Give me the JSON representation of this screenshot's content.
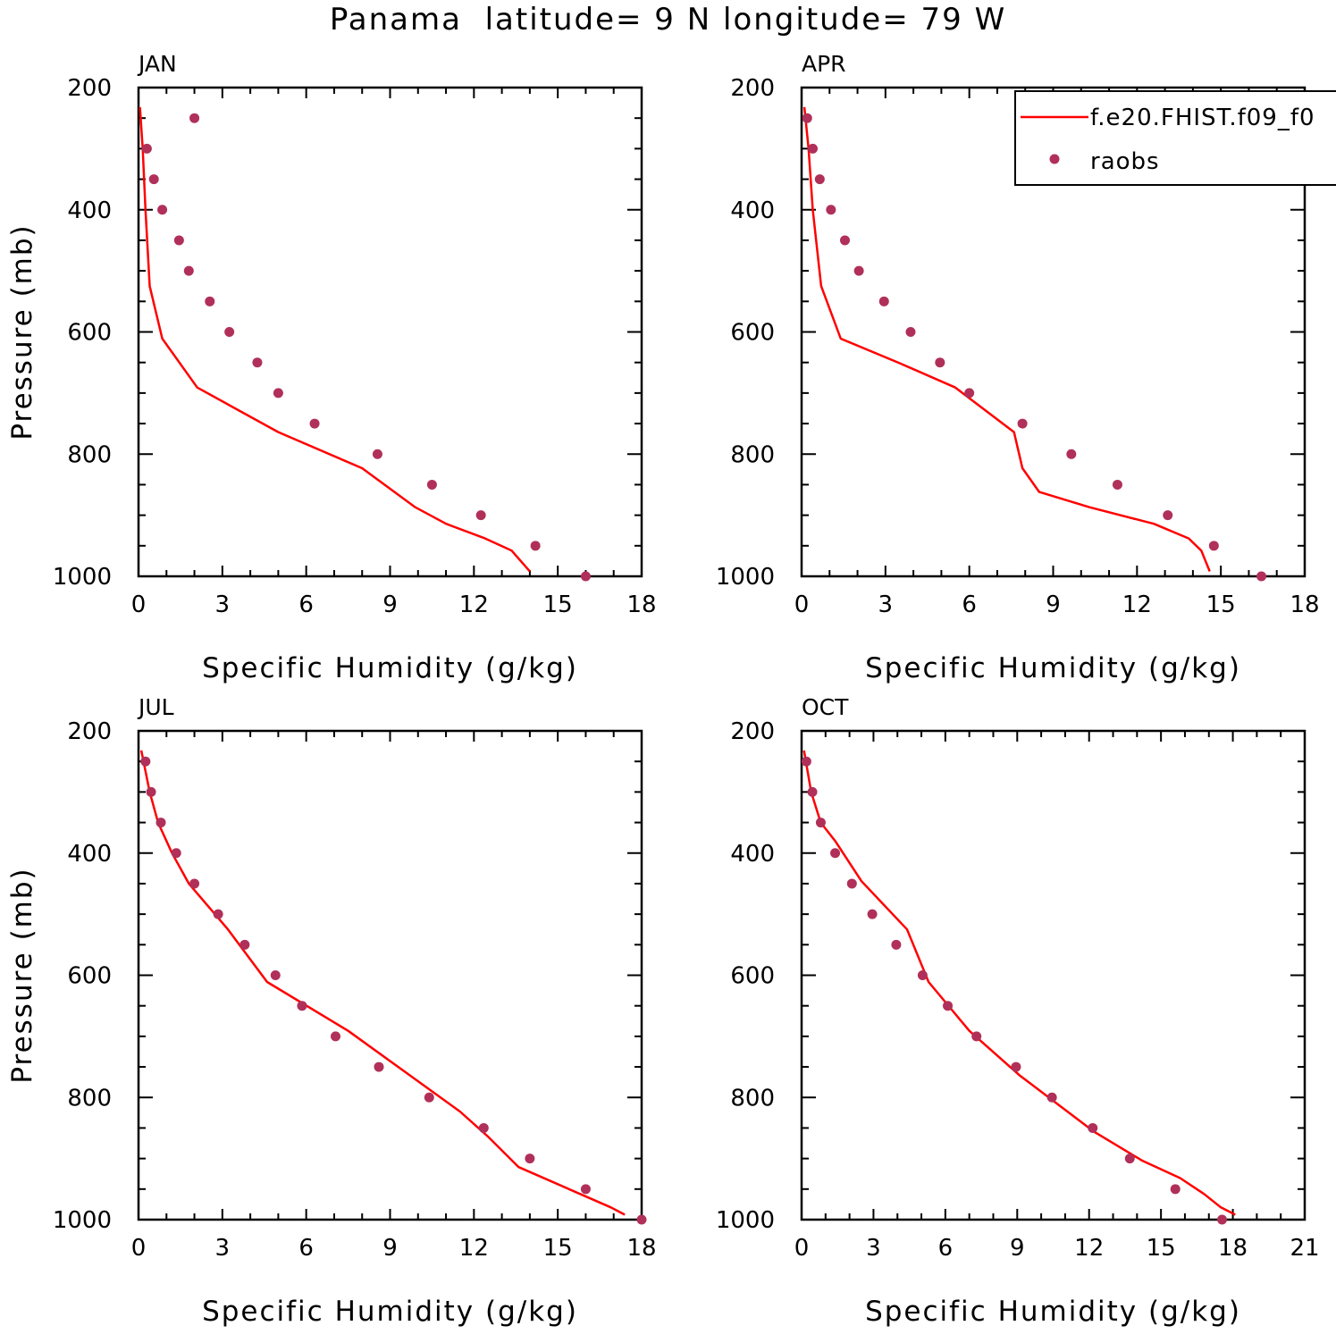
{
  "title": "Panama  latitude= 9 N longitude= 79 W",
  "colors": {
    "model": "#ff0000",
    "obs": "#b0305a",
    "axis": "#000000"
  },
  "legend": {
    "entries": [
      {
        "label": "f.e20.FHIST.f09_f0",
        "kind": "line"
      },
      {
        "label": "raobs",
        "kind": "marker"
      }
    ]
  },
  "chart_data": [
    {
      "type": "line+scatter",
      "panel_label": "JAN",
      "xlabel": "Specific Humidity (g/kg)",
      "ylabel": "Pressure (mb)",
      "xlim": [
        0,
        18
      ],
      "ylim": [
        1000,
        200
      ],
      "xticks": [
        0,
        3,
        6,
        9,
        12,
        15,
        18
      ],
      "yticks": [
        200,
        400,
        600,
        800,
        1000
      ],
      "model": {
        "x": [
          0.05,
          0.15,
          0.25,
          0.4,
          0.85,
          2.1,
          5.0,
          8.0,
          9.9,
          11.0,
          12.4,
          13.35,
          14.0
        ],
        "p": [
          232,
          300,
          400,
          525,
          611,
          691,
          764,
          823,
          887,
          914,
          938,
          958,
          992
        ]
      },
      "raobs": {
        "x": [
          2.0,
          0.3,
          0.55,
          0.85,
          1.45,
          1.8,
          2.55,
          3.25,
          4.25,
          5.0,
          6.3,
          8.55,
          10.5,
          12.25,
          14.2,
          16.0
        ],
        "p": [
          250,
          300,
          350,
          400,
          450,
          500,
          550,
          600,
          650,
          700,
          750,
          800,
          850,
          900,
          950,
          1000
        ]
      }
    },
    {
      "type": "line+scatter",
      "panel_label": "APR",
      "xlabel": "Specific Humidity (g/kg)",
      "ylabel": "",
      "xlim": [
        0,
        18
      ],
      "ylim": [
        1000,
        200
      ],
      "xticks": [
        0,
        3,
        6,
        9,
        12,
        15,
        18
      ],
      "yticks": [
        200,
        400,
        600,
        800,
        1000
      ],
      "model": {
        "x": [
          0.1,
          0.25,
          0.4,
          0.7,
          1.4,
          3.5,
          5.5,
          7.6,
          7.9,
          8.5,
          10.3,
          12.6,
          13.85,
          14.3,
          14.6
        ],
        "p": [
          232,
          300,
          400,
          525,
          611,
          651,
          691,
          764,
          823,
          862,
          887,
          914,
          938,
          958,
          992
        ]
      },
      "raobs": {
        "x": [
          0.2,
          0.4,
          0.65,
          1.05,
          1.55,
          2.05,
          2.95,
          3.9,
          4.95,
          6.0,
          7.9,
          9.65,
          11.3,
          13.1,
          14.75,
          16.45
        ],
        "p": [
          250,
          300,
          350,
          400,
          450,
          500,
          550,
          600,
          650,
          700,
          750,
          800,
          850,
          900,
          950,
          1000
        ]
      }
    },
    {
      "type": "line+scatter",
      "panel_label": "JUL",
      "xlabel": "Specific Humidity (g/kg)",
      "ylabel": "Pressure (mb)",
      "xlim": [
        0,
        18
      ],
      "ylim": [
        1000,
        200
      ],
      "xticks": [
        0,
        3,
        6,
        9,
        12,
        15,
        18
      ],
      "yticks": [
        200,
        400,
        600,
        800,
        1000
      ],
      "model": {
        "x": [
          0.1,
          0.4,
          0.7,
          1.2,
          1.8,
          3.2,
          4.6,
          7.5,
          11.5,
          12.5,
          13.6,
          15.8,
          16.9,
          17.4
        ],
        "p": [
          232,
          300,
          350,
          400,
          450,
          525,
          611,
          691,
          823,
          864,
          914,
          958,
          980,
          992
        ]
      },
      "raobs": {
        "x": [
          0.25,
          0.45,
          0.8,
          1.35,
          2.0,
          2.85,
          3.8,
          4.9,
          5.85,
          7.05,
          8.6,
          10.4,
          12.35,
          14.0,
          16.0,
          18.0
        ],
        "p": [
          250,
          300,
          350,
          400,
          450,
          500,
          550,
          600,
          650,
          700,
          750,
          800,
          850,
          900,
          950,
          1000
        ]
      }
    },
    {
      "type": "line+scatter",
      "panel_label": "OCT",
      "xlabel": "Specific Humidity (g/kg)",
      "ylabel": "",
      "xlim": [
        0,
        21
      ],
      "ylim": [
        1000,
        200
      ],
      "xticks": [
        0,
        3,
        6,
        9,
        12,
        15,
        18,
        21
      ],
      "yticks": [
        200,
        400,
        600,
        800,
        1000
      ],
      "model": {
        "x": [
          0.1,
          0.4,
          0.8,
          1.4,
          2.5,
          4.4,
          5.3,
          7.0,
          9.1,
          12.2,
          14.2,
          15.8,
          16.8,
          17.5,
          18.1
        ],
        "p": [
          232,
          300,
          350,
          380,
          446,
          525,
          611,
          691,
          764,
          856,
          903,
          932,
          958,
          980,
          992
        ]
      },
      "raobs": {
        "x": [
          0.2,
          0.45,
          0.8,
          1.4,
          2.1,
          2.95,
          3.95,
          5.05,
          6.1,
          7.3,
          8.95,
          10.45,
          12.15,
          13.7,
          15.6,
          17.55
        ],
        "p": [
          250,
          300,
          350,
          400,
          450,
          500,
          550,
          600,
          650,
          700,
          750,
          800,
          850,
          900,
          950,
          1000
        ]
      }
    }
  ]
}
